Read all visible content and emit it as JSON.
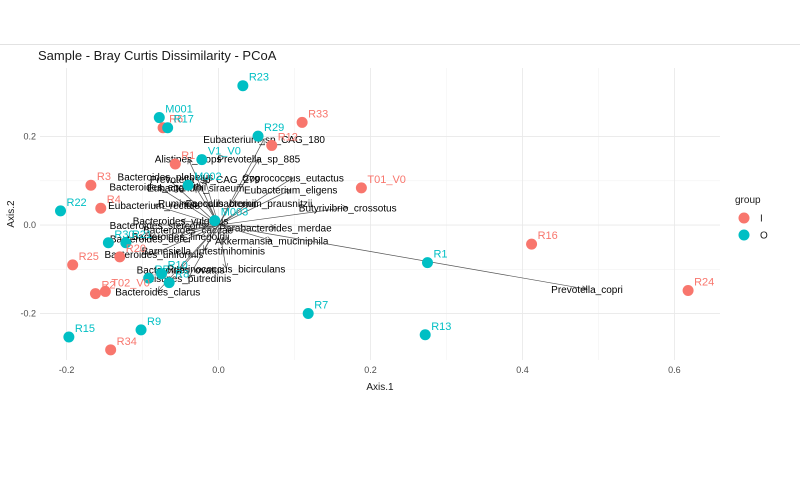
{
  "chart_data": {
    "type": "scatter",
    "title": "Sample - Bray Curtis Dissimilarity - PCoA",
    "xlabel": "Axis.1",
    "ylabel": "Axis.2",
    "xlim": [
      -0.235,
      0.66
    ],
    "ylim": [
      -0.305,
      0.355
    ],
    "xticks": [
      -0.2,
      0.0,
      0.2,
      0.4,
      0.6
    ],
    "xtick_labels": [
      "-0.2",
      "0.0",
      "0.2",
      "0.4",
      "0.6"
    ],
    "yticks": [
      -0.2,
      0.0,
      0.2
    ],
    "ytick_labels": [
      "-0.2",
      "0.0",
      "0.2"
    ],
    "grid": true,
    "legend": {
      "title": "group",
      "position": "right",
      "entries": [
        {
          "label": "I",
          "color": "#F8766D"
        },
        {
          "label": "O",
          "color": "#00BFC4"
        }
      ]
    },
    "arrow_origin": [
      0.0,
      0.0
    ],
    "points": [
      {
        "label": "R23",
        "group": "O",
        "x": 0.032,
        "y": 0.315
      },
      {
        "label": "M001",
        "group": "O",
        "x": -0.078,
        "y": 0.243
      },
      {
        "label": "R6",
        "group": "I",
        "x": -0.073,
        "y": 0.22
      },
      {
        "label": "R17",
        "group": "O",
        "x": -0.067,
        "y": 0.22
      },
      {
        "label": "R33",
        "group": "I",
        "x": 0.11,
        "y": 0.232
      },
      {
        "label": "R29",
        "group": "O",
        "x": 0.052,
        "y": 0.201
      },
      {
        "label": "R12",
        "group": "I",
        "x": 0.07,
        "y": 0.18
      },
      {
        "label": "V1_V0",
        "group": "O",
        "x": -0.022,
        "y": 0.148
      },
      {
        "label": "R1",
        "group": "I",
        "x": -0.057,
        "y": 0.138
      },
      {
        "label": "T01_V0",
        "group": "I",
        "x": 0.188,
        "y": 0.084
      },
      {
        "label": "R3",
        "group": "I",
        "x": -0.168,
        "y": 0.09
      },
      {
        "label": "R4",
        "group": "I",
        "x": -0.155,
        "y": 0.038
      },
      {
        "label": "R22",
        "group": "O",
        "x": -0.208,
        "y": 0.032
      },
      {
        "label": "M003",
        "group": "O",
        "x": -0.005,
        "y": 0.01
      },
      {
        "label": "M002",
        "group": "O",
        "x": -0.04,
        "y": 0.09
      },
      {
        "label": "R30",
        "group": "O",
        "x": -0.145,
        "y": -0.04
      },
      {
        "label": "R21",
        "group": "O",
        "x": -0.122,
        "y": -0.04
      },
      {
        "label": "R20",
        "group": "I",
        "x": -0.13,
        "y": -0.072
      },
      {
        "label": "R25",
        "group": "I",
        "x": -0.192,
        "y": -0.09
      },
      {
        "label": "R10",
        "group": "O",
        "x": -0.075,
        "y": -0.11
      },
      {
        "label": "R5",
        "group": "O",
        "x": -0.092,
        "y": -0.12
      },
      {
        "label": "R8",
        "group": "O",
        "x": -0.065,
        "y": -0.13
      },
      {
        "label": "T02_V0",
        "group": "I",
        "x": -0.149,
        "y": -0.15
      },
      {
        "label": "R2",
        "group": "I",
        "x": -0.162,
        "y": -0.155
      },
      {
        "label": "R1",
        "group": "O",
        "x": 0.275,
        "y": -0.085
      },
      {
        "label": "R16",
        "group": "I",
        "x": 0.412,
        "y": -0.043
      },
      {
        "label": "R24",
        "group": "I",
        "x": 0.618,
        "y": -0.148
      },
      {
        "label": "R7",
        "group": "O",
        "x": 0.118,
        "y": -0.2
      },
      {
        "label": "R9",
        "group": "O",
        "x": -0.102,
        "y": -0.237
      },
      {
        "label": "R13",
        "group": "O",
        "x": 0.272,
        "y": -0.248
      },
      {
        "label": "R15",
        "group": "O",
        "x": -0.197,
        "y": -0.253
      },
      {
        "label": "R34",
        "group": "I",
        "x": -0.142,
        "y": -0.282
      }
    ],
    "arrows": [
      {
        "label": "Eubacterium_sp_CAG_180",
        "x": 0.06,
        "y": 0.195
      },
      {
        "label": "Alistipes_inops",
        "x": -0.04,
        "y": 0.15
      },
      {
        "label": "Prevotella_sp_885",
        "x": 0.053,
        "y": 0.15
      },
      {
        "label": "Bacteroides_plebeius",
        "x": -0.07,
        "y": 0.11
      },
      {
        "label": "Coprococcus_eutactus",
        "x": 0.098,
        "y": 0.107
      },
      {
        "label": "Prevotella_sp_CAG_279",
        "x": -0.018,
        "y": 0.104
      },
      {
        "label": "Bacteroides_eggerthii",
        "x": -0.08,
        "y": 0.087
      },
      {
        "label": "Eubacterium_siraeum",
        "x": -0.03,
        "y": 0.085
      },
      {
        "label": "Eubacterium_eligens",
        "x": 0.095,
        "y": 0.08
      },
      {
        "label": "Ruminococcus_bromii",
        "x": -0.015,
        "y": 0.05
      },
      {
        "label": "Eubacterium_rectale",
        "x": -0.085,
        "y": 0.045
      },
      {
        "label": "Faecalibacterium_prausnitzii",
        "x": 0.04,
        "y": 0.05
      },
      {
        "label": "Butyrivibrio_crossotus",
        "x": 0.17,
        "y": 0.04
      },
      {
        "label": "Bacteroides_stercoris",
        "x": -0.08,
        "y": 0.0
      },
      {
        "label": "Bacteroides_vulgatus",
        "x": -0.05,
        "y": 0.01
      },
      {
        "label": "Bacteroides_caccae",
        "x": -0.04,
        "y": -0.01
      },
      {
        "label": "Parabacteroides_merdae",
        "x": 0.075,
        "y": -0.005
      },
      {
        "label": "Bacteroides_dorei",
        "x": -0.09,
        "y": -0.03
      },
      {
        "label": "Bacteroides_finegoldii",
        "x": -0.05,
        "y": -0.025
      },
      {
        "label": "Akkermansia_muciniphila",
        "x": 0.07,
        "y": -0.035
      },
      {
        "label": "Barnesiella_intestinihominis",
        "x": -0.02,
        "y": -0.058
      },
      {
        "label": "Bacteroides_uniformis",
        "x": -0.085,
        "y": -0.065
      },
      {
        "label": "Prevotella_copri",
        "x": 0.485,
        "y": -0.145
      },
      {
        "label": "Bacteroides_ovatus",
        "x": -0.05,
        "y": -0.1
      },
      {
        "label": "Ruminococcus_bicirculans",
        "x": 0.01,
        "y": -0.098
      },
      {
        "label": "Alistipes_putredinis",
        "x": -0.04,
        "y": -0.12
      },
      {
        "label": "Bacteroides_clarus",
        "x": -0.08,
        "y": -0.15
      }
    ]
  }
}
